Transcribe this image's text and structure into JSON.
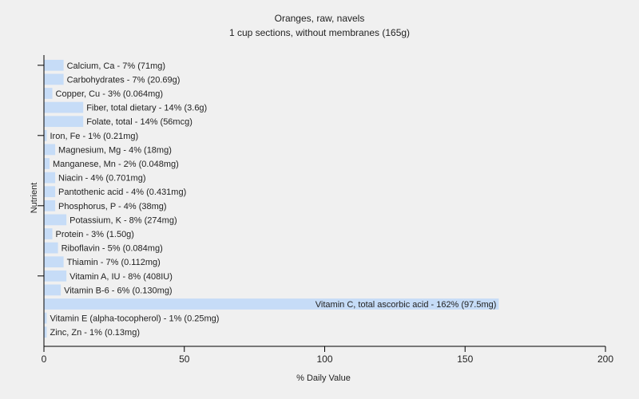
{
  "chart_data": {
    "type": "bar",
    "orientation": "horizontal",
    "title": "Oranges, raw, navels",
    "subtitle": "1 cup sections, without membranes (165g)",
    "xlabel": "% Daily Value",
    "ylabel": "Nutrient",
    "xlim": [
      0,
      200
    ],
    "xticks": [
      "0",
      "50",
      "100",
      "150",
      "200"
    ],
    "bar_color": "#c6dcf7",
    "grid": false,
    "categories": [
      "Calcium, Ca",
      "Carbohydrates",
      "Copper, Cu",
      "Fiber, total dietary",
      "Folate, total",
      "Iron, Fe",
      "Magnesium, Mg",
      "Manganese, Mn",
      "Niacin",
      "Pantothenic acid",
      "Phosphorus, P",
      "Potassium, K",
      "Protein",
      "Riboflavin",
      "Thiamin",
      "Vitamin A, IU",
      "Vitamin B-6",
      "Vitamin C, total ascorbic acid",
      "Vitamin E (alpha-tocopherol)",
      "Zinc, Zn"
    ],
    "values": [
      7,
      7,
      3,
      14,
      14,
      1,
      4,
      2,
      4,
      4,
      4,
      8,
      3,
      5,
      7,
      8,
      6,
      162,
      1,
      1
    ],
    "labels": [
      "Calcium, Ca - 7% (71mg)",
      "Carbohydrates - 7% (20.69g)",
      "Copper, Cu - 3% (0.064mg)",
      "Fiber, total dietary - 14% (3.6g)",
      "Folate, total - 14% (56mcg)",
      "Iron, Fe - 1% (0.21mg)",
      "Magnesium, Mg - 4% (18mg)",
      "Manganese, Mn - 2% (0.048mg)",
      "Niacin - 4% (0.701mg)",
      "Pantothenic acid - 4% (0.431mg)",
      "Phosphorus, P - 4% (38mg)",
      "Potassium, K - 8% (274mg)",
      "Protein - 3% (1.50g)",
      "Riboflavin - 5% (0.084mg)",
      "Thiamin - 7% (0.112mg)",
      "Vitamin A, IU - 8% (408IU)",
      "Vitamin B-6 - 6% (0.130mg)",
      "Vitamin C, total ascorbic acid - 162% (97.5mg)",
      "Vitamin E (alpha-tocopherol) - 1% (0.25mg)",
      "Zinc, Zn - 1% (0.13mg)"
    ]
  }
}
